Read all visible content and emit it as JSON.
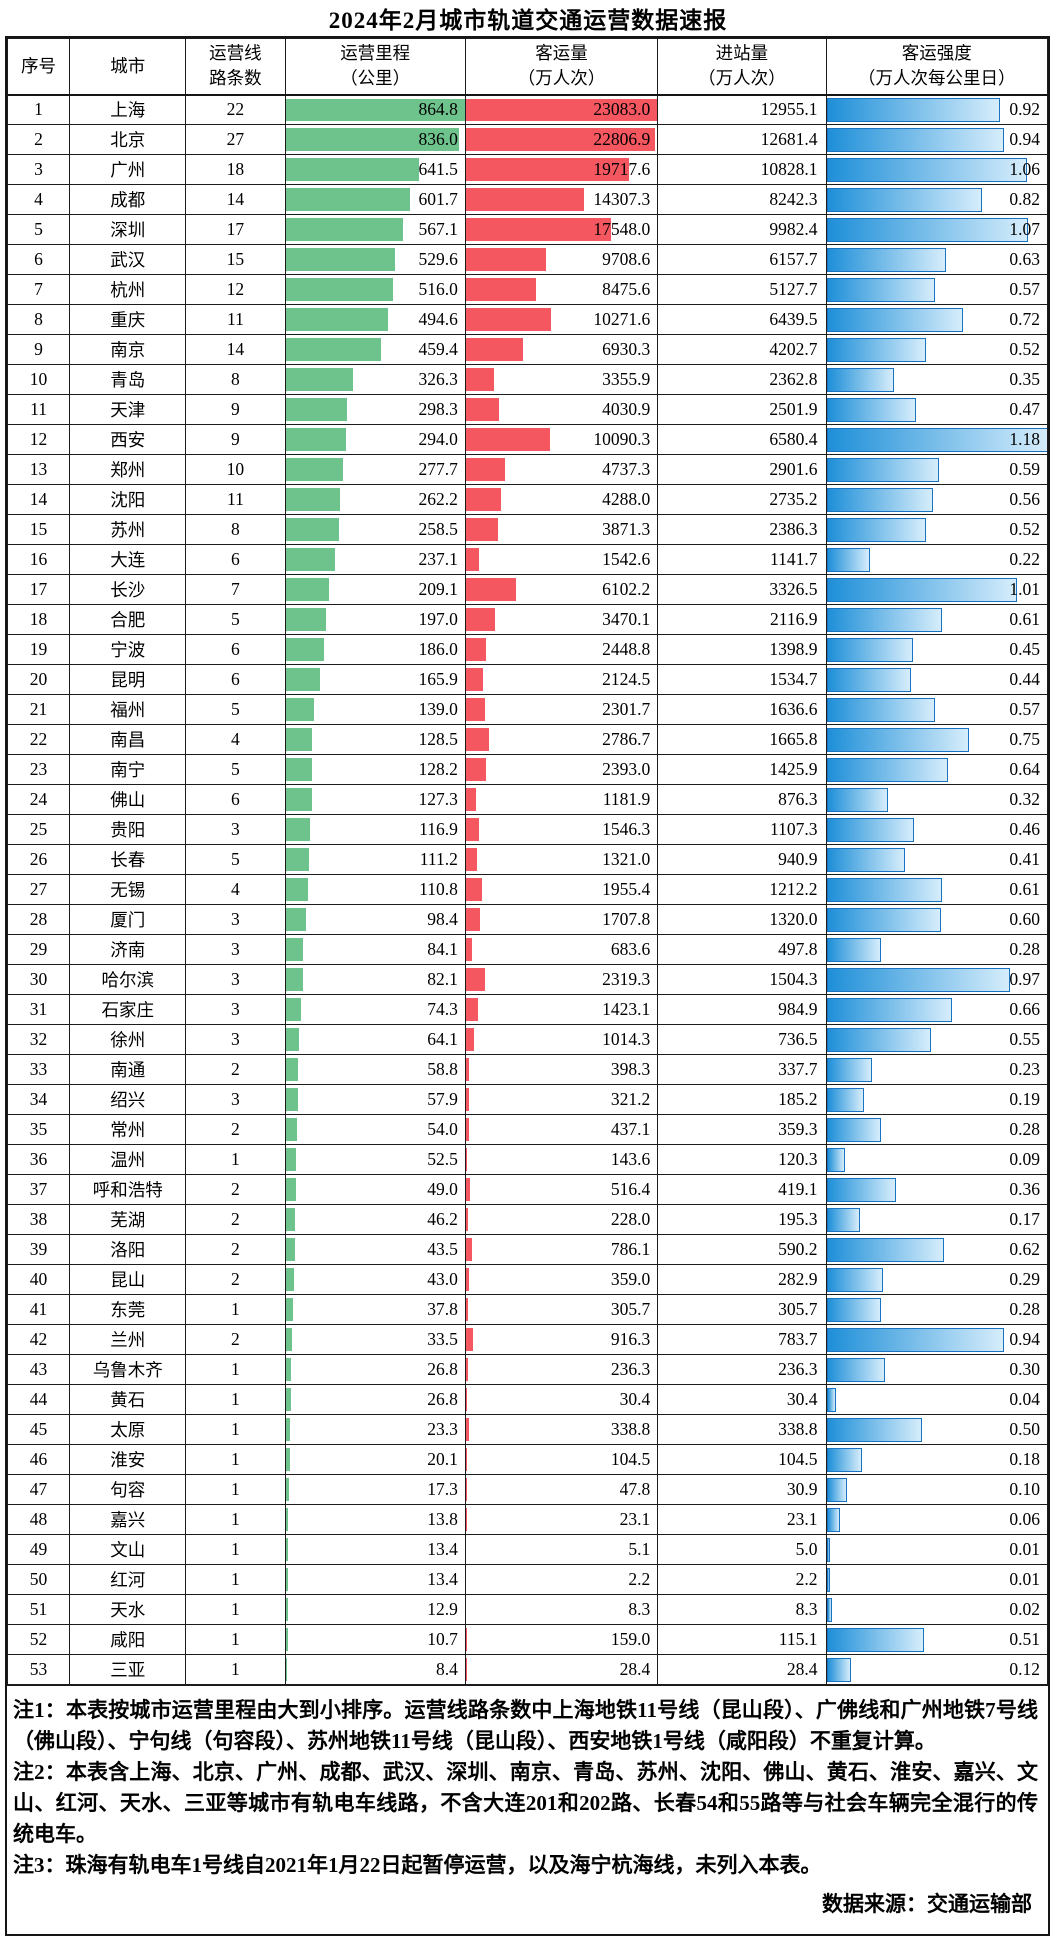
{
  "chart_data": {
    "type": "table",
    "title": "2024年2月城市轨道交通运营数据速报",
    "columns": [
      {
        "id": "rank",
        "lines": [
          "序号"
        ]
      },
      {
        "id": "city",
        "lines": [
          "城市"
        ]
      },
      {
        "id": "lines",
        "lines": [
          "运营线",
          "路条数"
        ]
      },
      {
        "id": "mileage",
        "lines": [
          "运营里程",
          "（公里）"
        ]
      },
      {
        "id": "passengers",
        "lines": [
          "客运量",
          "（万人次）"
        ]
      },
      {
        "id": "entries",
        "lines": [
          "进站量",
          "（万人次）"
        ]
      },
      {
        "id": "intensity",
        "lines": [
          "客运强度",
          "（万人次每公里日）"
        ]
      }
    ],
    "bar_columns": {
      "mileage": "green-solid",
      "passengers": "red-solid",
      "intensity": "blue-gradient"
    },
    "bar_max": {
      "mileage": 864.8,
      "passengers": 23083.0,
      "intensity": 1.18
    },
    "rows": [
      [
        1,
        "上海",
        22,
        864.8,
        23083.0,
        12955.1,
        0.92
      ],
      [
        2,
        "北京",
        27,
        836.0,
        22806.9,
        12681.4,
        0.94
      ],
      [
        3,
        "广州",
        18,
        641.5,
        19717.6,
        10828.1,
        1.06
      ],
      [
        4,
        "成都",
        14,
        601.7,
        14307.3,
        8242.3,
        0.82
      ],
      [
        5,
        "深圳",
        17,
        567.1,
        17548.0,
        9982.4,
        1.07
      ],
      [
        6,
        "武汉",
        15,
        529.6,
        9708.6,
        6157.7,
        0.63
      ],
      [
        7,
        "杭州",
        12,
        516.0,
        8475.6,
        5127.7,
        0.57
      ],
      [
        8,
        "重庆",
        11,
        494.6,
        10271.6,
        6439.5,
        0.72
      ],
      [
        9,
        "南京",
        14,
        459.4,
        6930.3,
        4202.7,
        0.52
      ],
      [
        10,
        "青岛",
        8,
        326.3,
        3355.9,
        2362.8,
        0.35
      ],
      [
        11,
        "天津",
        9,
        298.3,
        4030.9,
        2501.9,
        0.47
      ],
      [
        12,
        "西安",
        9,
        294.0,
        10090.3,
        6580.4,
        1.18
      ],
      [
        13,
        "郑州",
        10,
        277.7,
        4737.3,
        2901.6,
        0.59
      ],
      [
        14,
        "沈阳",
        11,
        262.2,
        4288.0,
        2735.2,
        0.56
      ],
      [
        15,
        "苏州",
        8,
        258.5,
        3871.3,
        2386.3,
        0.52
      ],
      [
        16,
        "大连",
        6,
        237.1,
        1542.6,
        1141.7,
        0.22
      ],
      [
        17,
        "长沙",
        7,
        209.1,
        6102.2,
        3326.5,
        1.01
      ],
      [
        18,
        "合肥",
        5,
        197.0,
        3470.1,
        2116.9,
        0.61
      ],
      [
        19,
        "宁波",
        6,
        186.0,
        2448.8,
        1398.9,
        0.45
      ],
      [
        20,
        "昆明",
        6,
        165.9,
        2124.5,
        1534.7,
        0.44
      ],
      [
        21,
        "福州",
        5,
        139.0,
        2301.7,
        1636.6,
        0.57
      ],
      [
        22,
        "南昌",
        4,
        128.5,
        2786.7,
        1665.8,
        0.75
      ],
      [
        23,
        "南宁",
        5,
        128.2,
        2393.0,
        1425.9,
        0.64
      ],
      [
        24,
        "佛山",
        6,
        127.3,
        1181.9,
        876.3,
        0.32
      ],
      [
        25,
        "贵阳",
        3,
        116.9,
        1546.3,
        1107.3,
        0.46
      ],
      [
        26,
        "长春",
        5,
        111.2,
        1321.0,
        940.9,
        0.41
      ],
      [
        27,
        "无锡",
        4,
        110.8,
        1955.4,
        1212.2,
        0.61
      ],
      [
        28,
        "厦门",
        3,
        98.4,
        1707.8,
        1320.0,
        0.6
      ],
      [
        29,
        "济南",
        3,
        84.1,
        683.6,
        497.8,
        0.28
      ],
      [
        30,
        "哈尔滨",
        3,
        82.1,
        2319.3,
        1504.3,
        0.97
      ],
      [
        31,
        "石家庄",
        3,
        74.3,
        1423.1,
        984.9,
        0.66
      ],
      [
        32,
        "徐州",
        3,
        64.1,
        1014.3,
        736.5,
        0.55
      ],
      [
        33,
        "南通",
        2,
        58.8,
        398.3,
        337.7,
        0.23
      ],
      [
        34,
        "绍兴",
        3,
        57.9,
        321.2,
        185.2,
        0.19
      ],
      [
        35,
        "常州",
        2,
        54.0,
        437.1,
        359.3,
        0.28
      ],
      [
        36,
        "温州",
        1,
        52.5,
        143.6,
        120.3,
        0.09
      ],
      [
        37,
        "呼和浩特",
        2,
        49.0,
        516.4,
        419.1,
        0.36
      ],
      [
        38,
        "芜湖",
        2,
        46.2,
        228.0,
        195.3,
        0.17
      ],
      [
        39,
        "洛阳",
        2,
        43.5,
        786.1,
        590.2,
        0.62
      ],
      [
        40,
        "昆山",
        2,
        43.0,
        359.0,
        282.9,
        0.29
      ],
      [
        41,
        "东莞",
        1,
        37.8,
        305.7,
        305.7,
        0.28
      ],
      [
        42,
        "兰州",
        2,
        33.5,
        916.3,
        783.7,
        0.94
      ],
      [
        43,
        "乌鲁木齐",
        1,
        26.8,
        236.3,
        236.3,
        0.3
      ],
      [
        44,
        "黄石",
        1,
        26.8,
        30.4,
        30.4,
        0.04
      ],
      [
        45,
        "太原",
        1,
        23.3,
        338.8,
        338.8,
        0.5
      ],
      [
        46,
        "淮安",
        1,
        20.1,
        104.5,
        104.5,
        0.18
      ],
      [
        47,
        "句容",
        1,
        17.3,
        47.8,
        30.9,
        0.1
      ],
      [
        48,
        "嘉兴",
        1,
        13.8,
        23.1,
        23.1,
        0.06
      ],
      [
        49,
        "文山",
        1,
        13.4,
        5.1,
        5.0,
        0.01
      ],
      [
        50,
        "红河",
        1,
        13.4,
        2.2,
        2.2,
        0.01
      ],
      [
        51,
        "天水",
        1,
        12.9,
        8.3,
        8.3,
        0.02
      ],
      [
        52,
        "咸阳",
        1,
        10.7,
        159.0,
        115.1,
        0.51
      ],
      [
        53,
        "三亚",
        1,
        8.4,
        28.4,
        28.4,
        0.12
      ]
    ]
  },
  "notes": [
    "注1：本表按城市运营里程由大到小排序。运营线路条数中上海地铁11号线（昆山段）、广佛线和广州地铁7号线（佛山段）、宁句线（句容段）、苏州地铁11号线（昆山段）、西安地铁1号线（咸阳段）不重复计算。",
    "注2：本表含上海、北京、广州、成都、武汉、深圳、南京、青岛、苏州、沈阳、佛山、黄石、淮安、嘉兴、文山、红河、天水、三亚等城市有轨电车线路，不含大连201和202路、长春54和55路等与社会车辆完全混行的传统电车。",
    "注3：珠海有轨电车1号线自2021年1月22日起暂停运营，以及海宁杭海线，未列入本表。"
  ],
  "source": "数据来源：交通运输部",
  "colors": {
    "mileage_bar": "#6dc38b",
    "passenger_bar": "#f4575f",
    "intensity_bar_start": "#1e8fd8",
    "intensity_bar_end": "#d6edfb",
    "intensity_bar_border": "#1a72c2",
    "grid": "#1c1c1c"
  }
}
